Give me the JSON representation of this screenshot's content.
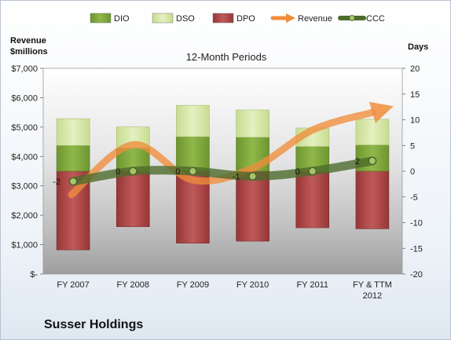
{
  "chart_data": {
    "type": "bar",
    "title": "12-Month Periods",
    "company": "Susser Holdings",
    "categories": [
      "FY 2007",
      "FY 2008",
      "FY 2009",
      "FY 2010",
      "FY 2011",
      "FY & TTM 2012"
    ],
    "y_left": {
      "label_line1": "Revenue",
      "label_line2": "$millions",
      "range": [
        0,
        7000
      ],
      "ticks": [
        "$-",
        "$1,000",
        "$2,000",
        "$3,000",
        "$4,000",
        "$5,000",
        "$6,000",
        "$7,000"
      ]
    },
    "y_right": {
      "label": "Days",
      "range": [
        -20,
        20
      ],
      "ticks": [
        "-20",
        "-15",
        "-10",
        "-5",
        "0",
        "5",
        "10",
        "15",
        "20"
      ]
    },
    "series": [
      {
        "name": "DIO",
        "axis": "right",
        "kind": "stacked-bar",
        "color": "#7ea63a",
        "values": [
          5.0,
          4.5,
          6.7,
          6.6,
          4.8,
          5.1
        ]
      },
      {
        "name": "DSO",
        "axis": "right",
        "kind": "stacked-bar",
        "color": "#d6e8a8",
        "values": [
          5.2,
          4.1,
          6.1,
          5.3,
          3.6,
          5.0
        ]
      },
      {
        "name": "DPO",
        "axis": "right",
        "kind": "bar-below-zero",
        "color": "#a94444",
        "values": [
          -15.3,
          -10.8,
          -14.0,
          -13.6,
          -11.0,
          -11.2
        ]
      },
      {
        "name": "Revenue",
        "axis": "left",
        "kind": "line",
        "color": "#f08d3b",
        "values": [
          2700,
          4400,
          3200,
          3600,
          4900,
          5500
        ]
      },
      {
        "name": "CCC",
        "axis": "right",
        "kind": "line",
        "color": "#5f7f3a",
        "values": [
          -2,
          0,
          0,
          -1,
          0,
          2
        ]
      }
    ],
    "ccc_labels": [
      "-2",
      "0",
      "0",
      "-1",
      "0",
      "2"
    ],
    "legend": [
      "DIO",
      "DSO",
      "DPO",
      "Revenue",
      "CCC"
    ],
    "legend_position": "top",
    "grid": false
  }
}
